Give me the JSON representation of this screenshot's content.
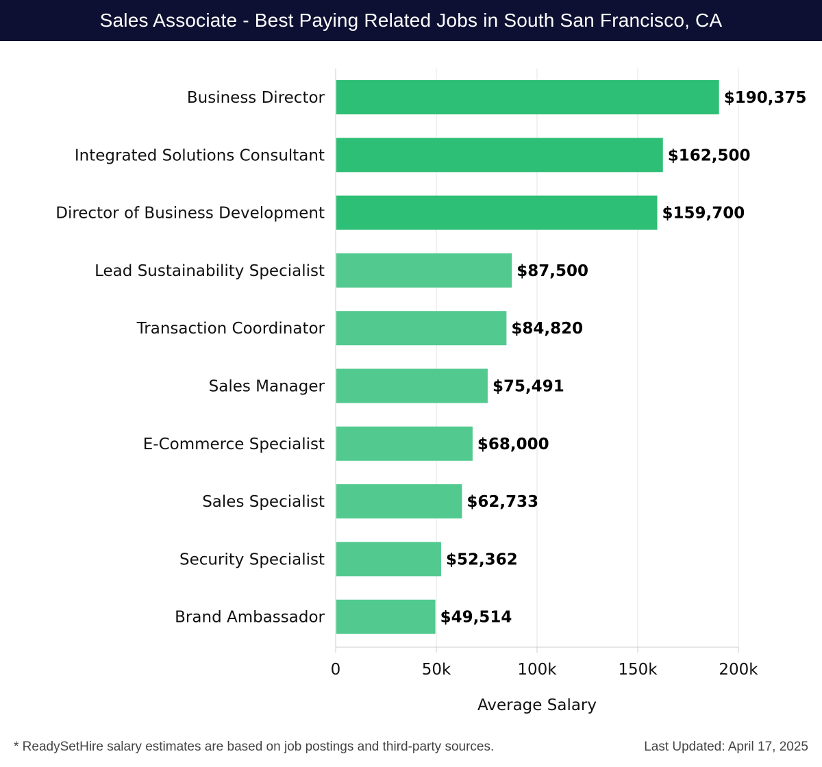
{
  "header": {
    "title": "Sales Associate - Best Paying Related Jobs in South San Francisco, CA"
  },
  "footer": {
    "note": "* ReadySetHire salary estimates are based on job postings and third-party sources.",
    "updated": "Last Updated: April 17, 2025"
  },
  "chart_data": {
    "type": "bar",
    "orientation": "horizontal",
    "title": "Sales Associate - Best Paying Related Jobs in South San Francisco, CA",
    "xlabel": "Average Salary",
    "ylabel": "",
    "xlim": [
      0,
      200000
    ],
    "ticks": [
      0,
      50000,
      100000,
      150000,
      200000
    ],
    "tick_labels": [
      "0",
      "50k",
      "100k",
      "150k",
      "200k"
    ],
    "grid": true,
    "categories": [
      "Business Director",
      "Integrated Solutions Consultant",
      "Director of Business Development",
      "Lead Sustainability Specialist",
      "Transaction Coordinator",
      "Sales Manager",
      "E-Commerce Specialist",
      "Sales Specialist",
      "Security Specialist",
      "Brand Ambassador"
    ],
    "values": [
      190375,
      162500,
      159700,
      87500,
      84820,
      75491,
      68000,
      62733,
      52362,
      49514
    ],
    "value_labels": [
      "$190,375",
      "$162,500",
      "$159,700",
      "$87,500",
      "$84,820",
      "$75,491",
      "$68,000",
      "$62,733",
      "$52,362",
      "$49,514"
    ],
    "colors": {
      "top": "#2ebf76",
      "rest": "#52c98f",
      "grid": "#e3e3e3",
      "axis": "#cccccc"
    }
  }
}
